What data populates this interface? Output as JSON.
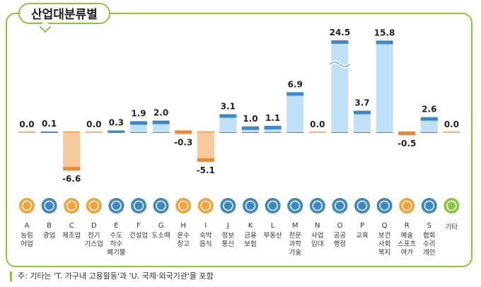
{
  "title": "산업대분류별",
  "note": "주: 기타는 'T. 가구내 고용활동'과 'U. 국제·외국기관'을 포함",
  "colors": {
    "positive_bar": "#bfe0f7",
    "positive_cap": "#3d87c9",
    "negative_bar": "#f8c99a",
    "negative_cap": "#e8893a",
    "baseline": "#f0b27a",
    "panel_border": "#8cc63f"
  },
  "chart_data": {
    "type": "bar",
    "axis_break": {
      "category": "O",
      "reason": "value exceeds plotted range"
    },
    "categories": [
      {
        "code": "A",
        "label": [
          "농림",
          "어업"
        ],
        "value": 0.0,
        "value_label": "0.0",
        "icon": "wheat-icon",
        "icon_color": "#f2a33a"
      },
      {
        "code": "B",
        "label": [
          "광업"
        ],
        "value": 0.1,
        "value_label": "0.1",
        "icon": "mine-helmet-icon",
        "icon_color": "#3d87c9"
      },
      {
        "code": "C",
        "label": [
          "제조업"
        ],
        "value": -6.6,
        "value_label": "-6.6",
        "icon": "gear-icon",
        "icon_color": "#f2a33a"
      },
      {
        "code": "D",
        "label": [
          "전기",
          "가스업"
        ],
        "value": 0.0,
        "value_label": "0.0",
        "icon": "lightning-icon",
        "icon_color": "#f2a33a"
      },
      {
        "code": "E",
        "label": [
          "수도",
          "하수",
          "폐기물"
        ],
        "value": 0.3,
        "value_label": "0.3",
        "icon": "faucet-icon",
        "icon_color": "#3d87c9"
      },
      {
        "code": "F",
        "label": [
          "건설업"
        ],
        "value": 1.9,
        "value_label": "1.9",
        "icon": "building-icon",
        "icon_color": "#3d87c9"
      },
      {
        "code": "G",
        "label": [
          "도소매"
        ],
        "value": 2.0,
        "value_label": "2.0",
        "icon": "shopping-basket-icon",
        "icon_color": "#3d87c9"
      },
      {
        "code": "H",
        "label": [
          "운수",
          "창고"
        ],
        "value": -0.3,
        "value_label": "-0.3",
        "icon": "truck-icon",
        "icon_color": "#f2a33a"
      },
      {
        "code": "I",
        "label": [
          "숙박",
          "음식"
        ],
        "value": -5.1,
        "value_label": "-5.1",
        "icon": "dining-icon",
        "icon_color": "#f2a33a"
      },
      {
        "code": "J",
        "label": [
          "정보",
          "통신"
        ],
        "value": 3.1,
        "value_label": "3.1",
        "icon": "mobile-phone-icon",
        "icon_color": "#3d87c9"
      },
      {
        "code": "K",
        "label": [
          "금융",
          "보험"
        ],
        "value": 1.0,
        "value_label": "1.0",
        "icon": "bank-icon",
        "icon_color": "#3d87c9"
      },
      {
        "code": "L",
        "label": [
          "부동산"
        ],
        "value": 1.1,
        "value_label": "1.1",
        "icon": "house-icon",
        "icon_color": "#3d87c9"
      },
      {
        "code": "M",
        "label": [
          "전문",
          "과학",
          "기술"
        ],
        "value": 6.9,
        "value_label": "6.9",
        "icon": "flask-icon",
        "icon_color": "#3d87c9"
      },
      {
        "code": "N",
        "label": [
          "사업",
          "임대"
        ],
        "value": 0.0,
        "value_label": "0.0",
        "icon": "people-icon",
        "icon_color": "#3d87c9"
      },
      {
        "code": "O",
        "label": [
          "공공",
          "행정"
        ],
        "value": 24.5,
        "value_label": "24.5",
        "icon": "document-icon",
        "icon_color": "#3d87c9"
      },
      {
        "code": "P",
        "label": [
          "교육"
        ],
        "value": 3.7,
        "value_label": "3.7",
        "icon": "graduation-cap-icon",
        "icon_color": "#3d87c9"
      },
      {
        "code": "Q",
        "label": [
          "보건",
          "사회",
          "복지"
        ],
        "value": 15.8,
        "value_label": "15.8",
        "icon": "medical-kit-icon",
        "icon_color": "#3d87c9"
      },
      {
        "code": "R",
        "label": [
          "예술",
          "스포츠",
          "여가"
        ],
        "value": -0.5,
        "value_label": "-0.5",
        "icon": "paint-palette-icon",
        "icon_color": "#f2a33a"
      },
      {
        "code": "S",
        "label": [
          "협회",
          "수리",
          "개인"
        ],
        "value": 2.6,
        "value_label": "2.6",
        "icon": "group-icon",
        "icon_color": "#3d87c9"
      },
      {
        "code": "",
        "label": [
          "기타"
        ],
        "value": 0.0,
        "value_label": "0.0",
        "icon": "phone-book-icon",
        "icon_color": "#8cc63f"
      }
    ]
  }
}
